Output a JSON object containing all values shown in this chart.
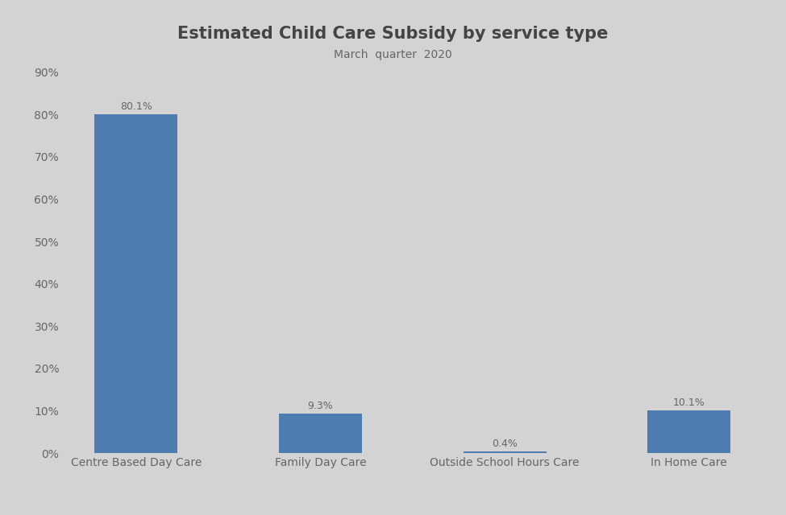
{
  "title": "Estimated Child Care Subsidy by service type",
  "subtitle": "March  quarter  2020",
  "categories": [
    "Centre Based Day Care",
    "Family Day Care",
    "Outside School Hours Care",
    "In Home Care"
  ],
  "values": [
    80.1,
    9.3,
    0.4,
    10.1
  ],
  "labels": [
    "80.1%",
    "9.3%",
    "0.4%",
    "10.1%"
  ],
  "bar_color": "#4d7db0",
  "background_color": "#d3d3d3",
  "ylim": [
    0,
    90
  ],
  "yticks": [
    0,
    10,
    20,
    30,
    40,
    50,
    60,
    70,
    80,
    90
  ],
  "ytick_labels": [
    "0%",
    "10%",
    "20%",
    "30%",
    "40%",
    "50%",
    "60%",
    "70%",
    "80%",
    "90%"
  ],
  "title_fontsize": 15,
  "subtitle_fontsize": 10,
  "tick_label_fontsize": 10,
  "bar_label_fontsize": 9,
  "axis_label_color": "#666666",
  "title_color": "#444444"
}
